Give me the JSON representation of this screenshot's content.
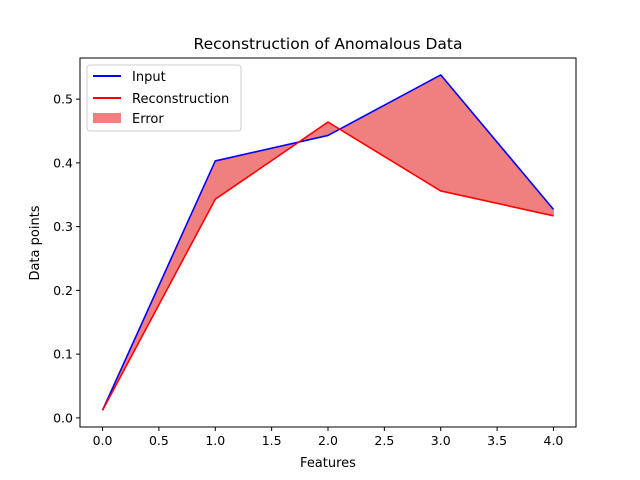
{
  "chart_data": {
    "type": "line",
    "title": "Reconstruction of Anomalous Data",
    "xlabel": "Features",
    "ylabel": "Data points",
    "x": [
      0,
      1,
      2,
      3,
      4
    ],
    "series": [
      {
        "name": "Input",
        "values": [
          0.012,
          0.403,
          0.443,
          0.538,
          0.327
        ],
        "color": "#0000ff"
      },
      {
        "name": "Reconstruction",
        "values": [
          0.012,
          0.343,
          0.464,
          0.356,
          0.317
        ],
        "color": "#ff0000"
      }
    ],
    "fill": {
      "name": "Error",
      "color": "#f08080"
    },
    "xlim": [
      -0.2,
      4.2
    ],
    "ylim": [
      -0.0143,
      0.5645
    ],
    "xticks": [
      0.0,
      0.5,
      1.0,
      1.5,
      2.0,
      2.5,
      3.0,
      3.5,
      4.0
    ],
    "xtick_labels": [
      "0.0",
      "0.5",
      "1.0",
      "1.5",
      "2.0",
      "2.5",
      "3.0",
      "3.5",
      "4.0"
    ],
    "yticks": [
      0.0,
      0.1,
      0.2,
      0.3,
      0.4,
      0.5
    ],
    "ytick_labels": [
      "0.0",
      "0.1",
      "0.2",
      "0.3",
      "0.4",
      "0.5"
    ],
    "grid": false,
    "legend_position": "top-left"
  }
}
